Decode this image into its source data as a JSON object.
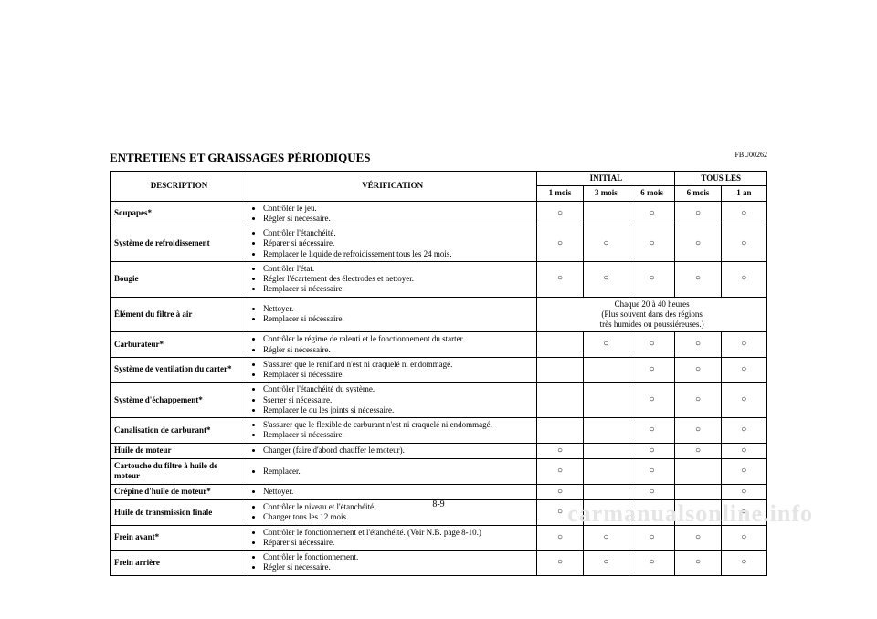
{
  "ref_code": "FBU00262",
  "doc_title": "ENTRETIENS ET GRAISSAGES PÉRIODIQUES",
  "page_number": "8-9",
  "watermark": "carmanualsonline.info",
  "circle_glyph": "○",
  "table": {
    "header": {
      "desc": "DESCRIPTION",
      "verif": "VÉRIFICATION",
      "initial": "INITIAL",
      "tous_les": "TOUS LES",
      "p1": "1 mois",
      "p2": "3 mois",
      "p3": "6 mois",
      "p4": "6 mois",
      "p5": "1 an"
    },
    "rows": [
      {
        "desc": "Soupapes*",
        "verif": [
          "Contrôler le jeu.",
          "Régler si nécessaire."
        ],
        "marks": [
          true,
          false,
          true,
          true,
          true
        ]
      },
      {
        "desc": "Système de refroidissement",
        "verif": [
          "Contrôler l'étanchéité.",
          "Réparer si nécessaire.",
          "Remplacer le liquide de refroidissement tous les 24 mois."
        ],
        "marks": [
          true,
          true,
          true,
          true,
          true
        ]
      },
      {
        "desc": "Bougie",
        "verif": [
          "Contrôler l'état.",
          "Régler l'écartement des électrodes et nettoyer.",
          "Remplacer si nécessaire."
        ],
        "marks": [
          true,
          true,
          true,
          true,
          true
        ]
      },
      {
        "desc": "Élément du filtre à air",
        "verif": [
          "Nettoyer.",
          "Remplacer si nécessaire."
        ],
        "note": "Chaque 20 à 40 heures\n(Plus souvent dans des régions\ntrès humides ou poussiéreuses.)"
      },
      {
        "desc": "Carburateur*",
        "verif": [
          "Contrôler le régime de ralenti et le fonctionnement du starter.",
          "Régler si nécessaire."
        ],
        "marks": [
          false,
          true,
          true,
          true,
          true
        ]
      },
      {
        "desc": "Système de ventilation du carter*",
        "verif": [
          "S'assurer que le reniflard n'est ni craquelé ni endommagé.",
          "Remplacer si nécessaire."
        ],
        "marks": [
          false,
          false,
          true,
          true,
          true
        ]
      },
      {
        "desc": "Système d'échappement*",
        "verif": [
          "Contrôler l'étanchéité du système.",
          "Sserrer si nécessaire.",
          "Remplacer le ou les joints si nécessaire."
        ],
        "marks": [
          false,
          false,
          true,
          true,
          true
        ]
      },
      {
        "desc": "Canalisation de carburant*",
        "verif": [
          "S'assurer que le flexible de carburant n'est ni craquelé ni endommagé.",
          "Remplacer si nécessaire."
        ],
        "marks": [
          false,
          false,
          true,
          true,
          true
        ]
      },
      {
        "desc": "Huile de moteur",
        "verif": [
          "Changer (faire d'abord chauffer le moteur)."
        ],
        "marks": [
          true,
          false,
          true,
          true,
          true
        ]
      },
      {
        "desc": "Cartouche du filtre à huile de moteur",
        "verif": [
          "Remplacer."
        ],
        "marks": [
          true,
          false,
          true,
          false,
          true
        ]
      },
      {
        "desc": "Crépine d'huile de moteur*",
        "verif": [
          "Nettoyer."
        ],
        "marks": [
          true,
          false,
          true,
          false,
          true
        ]
      },
      {
        "desc": "Huile de transmission finale",
        "verif": [
          "Contrôler le niveau et l'étanchéité.",
          "Changer tous les 12 mois."
        ],
        "marks": [
          true,
          false,
          false,
          false,
          true
        ]
      },
      {
        "desc": "Frein avant*",
        "verif": [
          "Contrôler le fonctionnement et l'étanchéité. (Voir N.B. page 8-10.)",
          "Réparer si nécessaire."
        ],
        "marks": [
          true,
          true,
          true,
          true,
          true
        ]
      },
      {
        "desc": "Frein arrière",
        "verif": [
          "Contrôler le fonctionnement.",
          "Régler si nécessaire."
        ],
        "marks": [
          true,
          true,
          true,
          true,
          true
        ]
      }
    ]
  }
}
